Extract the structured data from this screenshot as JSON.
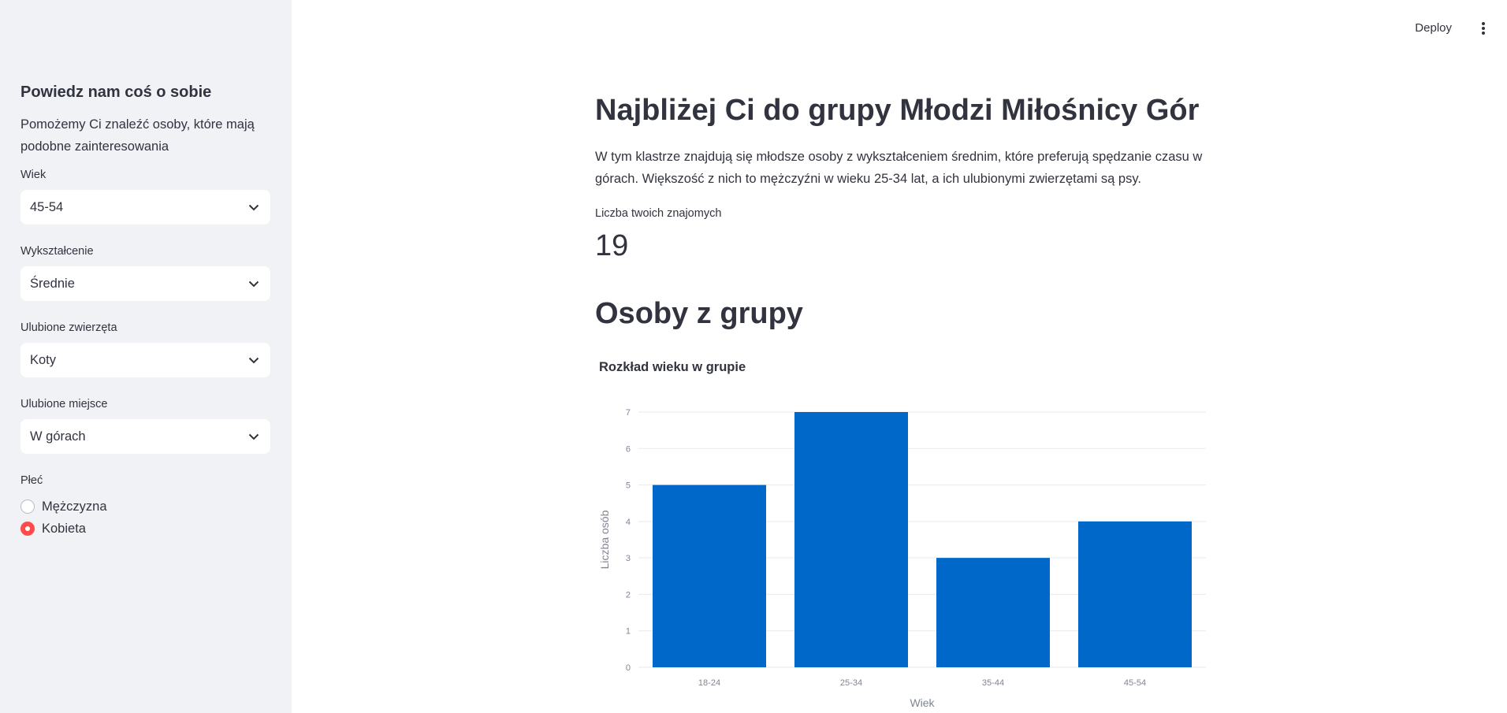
{
  "sidebar": {
    "heading": "Powiedz nam coś o sobie",
    "intro": "Pomożemy Ci znaleźć osoby, które mają podobne zainteresowania",
    "fields": {
      "age": {
        "label": "Wiek",
        "value": "45-54"
      },
      "education": {
        "label": "Wykształcenie",
        "value": "Średnie"
      },
      "animals": {
        "label": "Ulubione zwierzęta",
        "value": "Koty"
      },
      "place": {
        "label": "Ulubione miejsce",
        "value": "W górach"
      }
    },
    "gender": {
      "label": "Płeć",
      "options": [
        "Mężczyzna",
        "Kobieta"
      ],
      "selected": "Kobieta"
    }
  },
  "header": {
    "deploy_label": "Deploy",
    "menu_icon": "kebab-menu-icon"
  },
  "main": {
    "title": "Najbliżej Ci do grupy Młodzi Miłośnicy Gór",
    "description": "W tym klastrze znajdują się młodsze osoby z wykształceniem średnim, które preferują spędzanie czasu w górach. Większość z nich to mężczyźni w wieku 25-34 lat, a ich ulubionymi zwierzętami są psy.",
    "metric": {
      "label": "Liczba twoich znajomych",
      "value": "19"
    },
    "section_title": "Osoby z grupy"
  },
  "colors": {
    "sidebar_bg": "#f0f2f6",
    "accent": "#ff4b4b",
    "bar": "#0068c9",
    "text": "#31333f"
  },
  "chart_data": {
    "type": "bar",
    "title": "Rozkład wieku w grupie",
    "xlabel": "Wiek",
    "ylabel": "Liczba osób",
    "categories": [
      "18-24",
      "25-34",
      "35-44",
      "45-54"
    ],
    "values": [
      5,
      7,
      3,
      4
    ],
    "ylim": [
      0,
      7
    ],
    "yticks": [
      0,
      1,
      2,
      3,
      4,
      5,
      6,
      7
    ],
    "grid": true
  }
}
